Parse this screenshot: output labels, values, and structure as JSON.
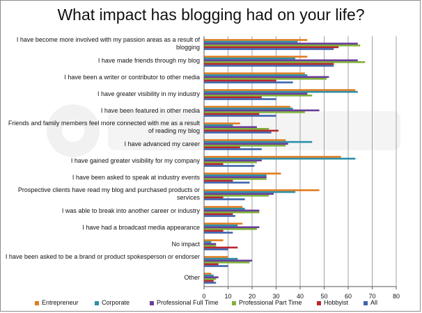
{
  "chart_data": {
    "type": "bar",
    "orientation": "horizontal",
    "title": "What impact has blogging had on your life?",
    "categories": [
      "I have become more involved with my passion areas as a result of blogging",
      "I have made friends through my blog",
      "I have been a writer or contributor to other media",
      "I have greater visibility in my industry",
      "I have been featured in other media",
      "Friends and family members feel more connected with me as a result of reading my blog",
      "I have advanced my career",
      "I have gained greater visibility for my company",
      "I have been asked to speak at industry events",
      "Prospective clients have read my blog and purchased products or services",
      "I was able to break into another career or industry",
      "I have had a broadcast media appearance",
      "No impact",
      "I have been asked to be a brand or product spokesperson or endorser",
      "Other"
    ],
    "series": [
      {
        "name": "Entrepreneur",
        "color": "#e07b1f",
        "values": [
          43,
          43,
          42,
          63,
          36,
          15,
          34,
          57,
          32,
          48,
          16,
          16,
          8,
          10,
          3
        ]
      },
      {
        "name": "Corporate",
        "color": "#2c8fa6",
        "values": [
          39,
          38,
          43,
          64,
          37,
          12,
          45,
          63,
          26,
          38,
          17,
          14,
          3,
          14,
          4
        ]
      },
      {
        "name": "Professional  Full Time",
        "color": "#6a3d9a",
        "values": [
          64,
          64,
          52,
          43,
          48,
          22,
          35,
          24,
          26,
          29,
          23,
          23,
          5,
          20,
          6
        ]
      },
      {
        "name": "Professional Part Time",
        "color": "#7fb03a",
        "values": [
          65,
          67,
          51,
          45,
          42,
          27,
          34,
          22,
          26,
          27,
          23,
          22,
          5,
          19,
          5
        ]
      },
      {
        "name": "Hobbyist",
        "color": "#b8252c",
        "values": [
          56,
          54,
          30,
          24,
          23,
          31,
          15,
          8,
          12,
          8,
          12,
          8,
          14,
          6,
          4
        ]
      },
      {
        "name": "All",
        "color": "#3d63ad",
        "values": [
          54,
          54,
          37,
          30,
          30,
          28,
          24,
          21,
          19,
          17,
          13,
          12,
          10,
          10,
          5
        ]
      }
    ],
    "x_ticks": [
      0,
      10,
      20,
      30,
      40,
      50,
      60,
      70,
      80
    ],
    "xlim": [
      0,
      80
    ],
    "grid": "vertical",
    "legend_position": "bottom"
  }
}
